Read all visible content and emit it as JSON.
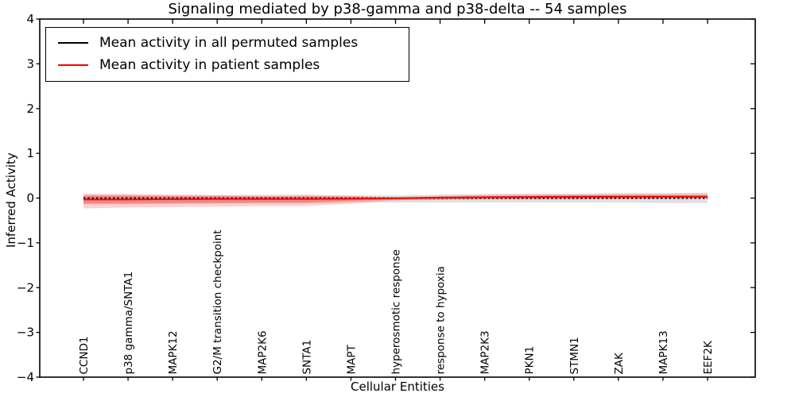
{
  "figure": {
    "title": "Signaling mediated by p38-gamma and p38-delta -- 54 samples",
    "xlabel": "Cellular Entities",
    "ylabel": "Inferred Activity"
  },
  "legend": {
    "items": [
      {
        "label": "Mean activity in all permuted samples",
        "color": "#000000"
      },
      {
        "label": "Mean activity in patient samples",
        "color": "#ff0000"
      }
    ]
  },
  "chart_data": {
    "type": "line",
    "title": "Signaling mediated by p38-gamma and p38-delta -- 54 samples",
    "xlabel": "Cellular Entities",
    "ylabel": "Inferred Activity",
    "ylim": [
      -4,
      4
    ],
    "yticks": [
      4,
      3,
      2,
      1,
      0,
      -1,
      -2,
      -3,
      -4
    ],
    "grid": false,
    "legend_position": "upper left",
    "categories": [
      "CCND1",
      "p38 gamma/SNTA1",
      "MAPK12",
      "G2/M transition checkpoint",
      "MAP2K6",
      "SNTA1",
      "MAPT",
      "hyperosmotic response",
      "response to hypoxia",
      "MAP2K3",
      "PKN1",
      "STMN1",
      "ZAK",
      "MAPK13",
      "EEF2K"
    ],
    "series": [
      {
        "name": "Mean activity in all permuted samples",
        "color": "#000000",
        "style": "dashed",
        "values": [
          0.0,
          0.0,
          0.0,
          0.0,
          0.0,
          0.0,
          0.0,
          0.0,
          0.0,
          0.0,
          0.0,
          0.0,
          0.0,
          0.0,
          0.0
        ]
      },
      {
        "name": "Mean activity in patient samples",
        "color": "#ff0000",
        "style": "solid",
        "values": [
          -0.03,
          -0.03,
          -0.025,
          -0.02,
          -0.02,
          -0.02,
          -0.015,
          -0.005,
          0.01,
          0.02,
          0.025,
          0.03,
          0.03,
          0.03,
          0.03
        ]
      }
    ],
    "bands": [
      {
        "name": "permuted-samples-range",
        "color": "#000000",
        "alpha": 0.12,
        "upper": [
          0.07,
          0.07,
          0.06,
          0.06,
          0.05,
          0.05,
          0.06,
          0.06,
          0.08,
          0.09,
          0.1,
          0.1,
          0.11,
          0.11,
          0.12
        ],
        "lower": [
          -0.14,
          -0.13,
          -0.13,
          -0.12,
          -0.12,
          -0.12,
          -0.1,
          -0.1,
          -0.1,
          -0.1,
          -0.1,
          -0.1,
          -0.1,
          -0.11,
          -0.11
        ]
      },
      {
        "name": "patient-samples-range-outer",
        "color": "#ff0000",
        "alpha": 0.18,
        "upper": [
          0.1,
          0.09,
          0.08,
          0.07,
          0.07,
          0.08,
          0.05,
          0.02,
          0.05,
          0.07,
          0.08,
          0.08,
          0.09,
          0.09,
          0.09
        ],
        "lower": [
          -0.23,
          -0.21,
          -0.2,
          -0.19,
          -0.18,
          -0.18,
          -0.12,
          -0.05,
          -0.04,
          -0.03,
          -0.03,
          -0.03,
          -0.02,
          -0.02,
          -0.01
        ]
      },
      {
        "name": "patient-samples-range-inner",
        "color": "#ff0000",
        "alpha": 0.25,
        "upper": [
          0.05,
          0.05,
          0.04,
          0.04,
          0.03,
          0.04,
          0.02,
          0.01,
          0.03,
          0.04,
          0.05,
          0.05,
          0.06,
          0.06,
          0.06
        ],
        "lower": [
          -0.12,
          -0.12,
          -0.11,
          -0.11,
          -0.1,
          -0.1,
          -0.06,
          -0.03,
          -0.02,
          -0.01,
          -0.01,
          -0.01,
          -0.01,
          0.0,
          0.0
        ]
      }
    ]
  }
}
